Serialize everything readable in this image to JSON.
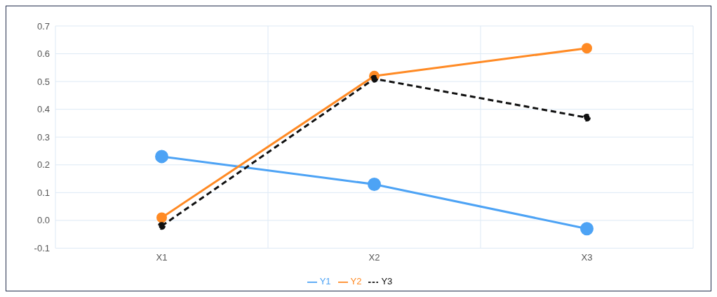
{
  "chart_data": {
    "type": "line",
    "categories": [
      "X1",
      "X2",
      "X3"
    ],
    "series": [
      {
        "name": "Y1",
        "color": "#4da3f5",
        "values": [
          0.23,
          0.13,
          -0.03
        ]
      },
      {
        "name": "Y2",
        "color": "#ff8a24",
        "values": [
          0.01,
          0.52,
          0.62
        ]
      },
      {
        "name": "Y3",
        "color": "#111111",
        "values": [
          -0.02,
          0.51,
          0.37
        ],
        "line_style": "dashed"
      }
    ],
    "ylim": [
      -0.1,
      0.7
    ],
    "yticks": [
      {
        "value": -0.1,
        "label": "-0.1"
      },
      {
        "value": 0,
        "label": "0.0"
      },
      {
        "value": 0.1,
        "label": "0.1"
      },
      {
        "value": 0.2,
        "label": "0.2"
      },
      {
        "value": 0.3,
        "label": "0.3"
      },
      {
        "value": 0.4,
        "label": "0.4"
      },
      {
        "value": 0.5,
        "label": "0.5"
      },
      {
        "value": 0.6,
        "label": "0.6"
      },
      {
        "value": 0.7,
        "label": "0.7"
      }
    ],
    "grid": true,
    "legend": "bottom",
    "marker": "circle"
  }
}
